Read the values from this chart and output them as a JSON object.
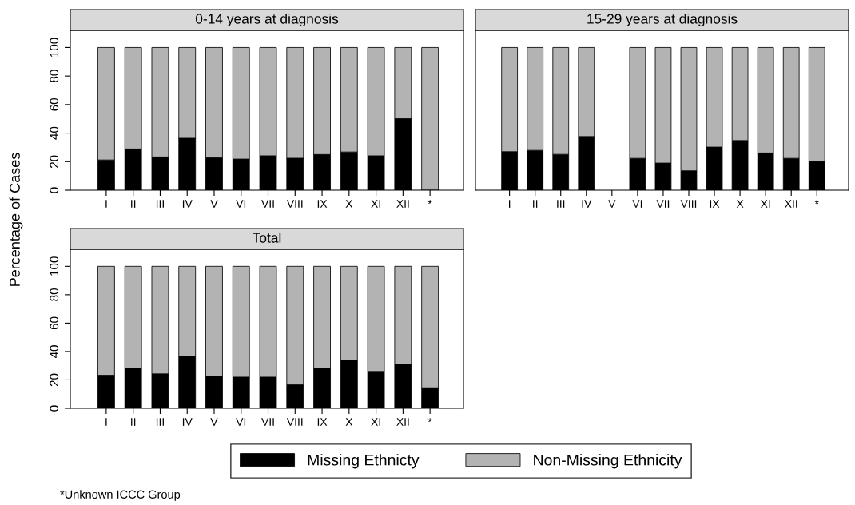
{
  "chart_data": [
    {
      "type": "bar",
      "title": "0-14 years at diagnosis",
      "ylabel": "Percentage of Cases",
      "stacked": true,
      "categories": [
        "I",
        "II",
        "III",
        "IV",
        "V",
        "VI",
        "VII",
        "VIII",
        "IX",
        "X",
        "XI",
        "XII",
        "*"
      ],
      "series": [
        {
          "color": "#000000",
          "values": [
            21.2,
            28.9,
            23.3,
            36.4,
            22.7,
            21.8,
            24.1,
            22.4,
            25,
            26.8,
            24.1,
            50.1,
            0
          ]
        },
        {
          "color": "#b3b3b3",
          "values": [
            78.8,
            71.1,
            76.7,
            63.6,
            77.3,
            78.2,
            75.9,
            77.6,
            75,
            73.2,
            75.9,
            49.9,
            100
          ]
        }
      ],
      "ylim": [
        0,
        112
      ],
      "yticks": [
        0,
        20,
        40,
        60,
        80,
        100
      ]
    },
    {
      "type": "bar",
      "title": "15-29 years at diagnosis",
      "stacked": true,
      "tick_labels": "x",
      "categories": [
        "I",
        "II",
        "III",
        "IV",
        "V",
        "VI",
        "VII",
        "VIII",
        "IX",
        "X",
        "XI",
        "XII",
        "*"
      ],
      "series": [
        {
          "color": "#000000",
          "values": [
            27,
            27.9,
            25.1,
            37.6,
            null,
            22.3,
            19,
            13.6,
            30.2,
            34.8,
            26.1,
            22.3,
            20.1
          ]
        },
        {
          "color": "#b3b3b3",
          "values": [
            73,
            72.1,
            74.9,
            62.4,
            null,
            77.7,
            81,
            86.4,
            69.8,
            65.2,
            73.9,
            77.7,
            79.9
          ]
        }
      ],
      "ylim": [
        0,
        112
      ],
      "yticks": [
        0,
        20,
        40,
        60,
        80,
        100
      ]
    },
    {
      "type": "bar",
      "title": "Total",
      "stacked": true,
      "legend": "bottom",
      "annotations": [
        "*Unknown ICCC Group"
      ],
      "categories": [
        "I",
        "II",
        "III",
        "IV",
        "V",
        "VI",
        "VII",
        "VIII",
        "IX",
        "X",
        "XI",
        "XII",
        "*"
      ],
      "series": [
        {
          "name": "Missing Ethnicty",
          "color": "#000000",
          "values": [
            23.3,
            28.3,
            24.3,
            36.6,
            22.7,
            22,
            22,
            16.8,
            28.3,
            33.9,
            26,
            31,
            14.5
          ]
        },
        {
          "name": "Non-Missing Ethnicity",
          "color": "#b3b3b3",
          "values": [
            76.7,
            71.7,
            75.7,
            63.4,
            77.3,
            78,
            78,
            83.2,
            71.7,
            66.1,
            74,
            69,
            85.5
          ]
        }
      ],
      "ylim": [
        0,
        112
      ],
      "yticks": [
        0,
        20,
        40,
        60,
        80,
        100
      ]
    }
  ]
}
